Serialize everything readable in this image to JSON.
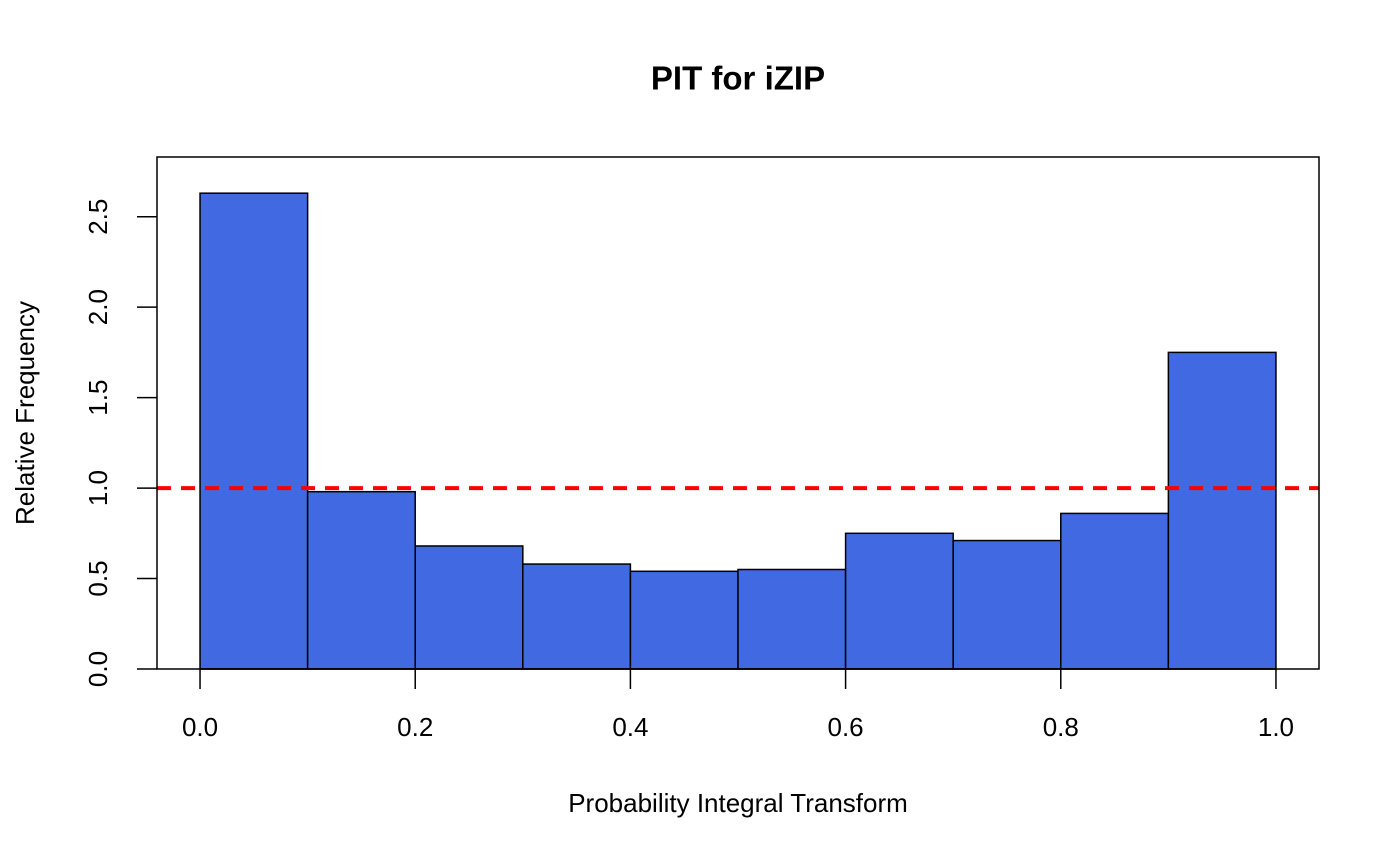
{
  "chart_data": {
    "type": "histogram",
    "title": "PIT for iZIP",
    "x_label": "Probability Integral Transform",
    "y_label": "Relative Frequency",
    "bins": [
      0,
      0.1,
      0.2,
      0.3,
      0.4,
      0.5,
      0.6,
      0.7,
      0.8,
      0.9,
      1
    ],
    "values": [
      2.63,
      0.98,
      0.68,
      0.58,
      0.54,
      0.55,
      0.75,
      0.71,
      0.86,
      1.75
    ],
    "color": "#4169e1",
    "xlim": [
      -0.04,
      1.04
    ],
    "ylim": [
      0,
      2.83
    ],
    "xticks": [
      {
        "value": 0,
        "label": "0.0"
      },
      0.2,
      0.4,
      0.6,
      0.8,
      {
        "value": 1,
        "label": "1.0"
      }
    ],
    "yticks": [
      {
        "value": 0,
        "label": "0.0"
      },
      0.5,
      {
        "value": 1,
        "label": "1.0"
      },
      1.5,
      {
        "value": 2,
        "label": "2.0"
      },
      2.5
    ],
    "reference_line": 1,
    "reference_color": "#ff0000"
  }
}
